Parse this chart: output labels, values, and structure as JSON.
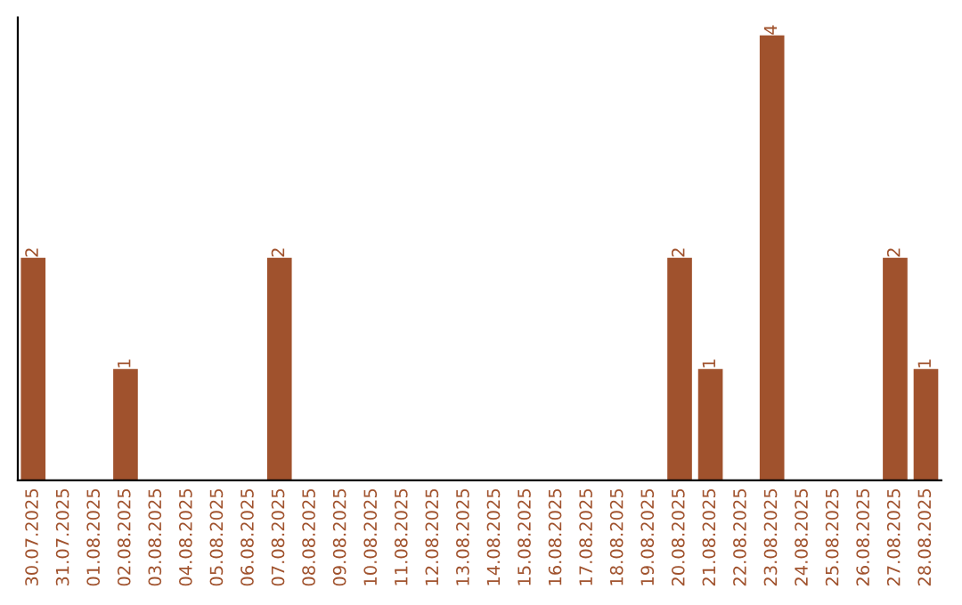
{
  "chart_data": {
    "type": "bar",
    "color": "#a0522d",
    "categories": [
      "30.07.2025",
      "31.07.2025",
      "01.08.2025",
      "02.08.2025",
      "03.08.2025",
      "04.08.2025",
      "05.08.2025",
      "06.08.2025",
      "07.08.2025",
      "08.08.2025",
      "09.08.2025",
      "10.08.2025",
      "11.08.2025",
      "12.08.2025",
      "13.08.2025",
      "14.08.2025",
      "15.08.2025",
      "16.08.2025",
      "17.08.2025",
      "18.08.2025",
      "19.08.2025",
      "20.08.2025",
      "21.08.2025",
      "22.08.2025",
      "23.08.2025",
      "24.08.2025",
      "25.08.2025",
      "26.08.2025",
      "27.08.2025",
      "28.08.2025"
    ],
    "values": [
      2,
      0,
      0,
      1,
      0,
      0,
      0,
      0,
      2,
      0,
      0,
      0,
      0,
      0,
      0,
      0,
      0,
      0,
      0,
      0,
      0,
      2,
      1,
      0,
      4,
      0,
      0,
      0,
      2,
      1
    ],
    "value_labels": [
      "2",
      null,
      null,
      "1",
      null,
      null,
      null,
      null,
      "2",
      null,
      null,
      null,
      null,
      null,
      null,
      null,
      null,
      null,
      null,
      null,
      null,
      "2",
      "1",
      null,
      "4",
      null,
      null,
      null,
      "2",
      "1"
    ],
    "tick_labels": "x",
    "grid": false,
    "legend": false
  }
}
